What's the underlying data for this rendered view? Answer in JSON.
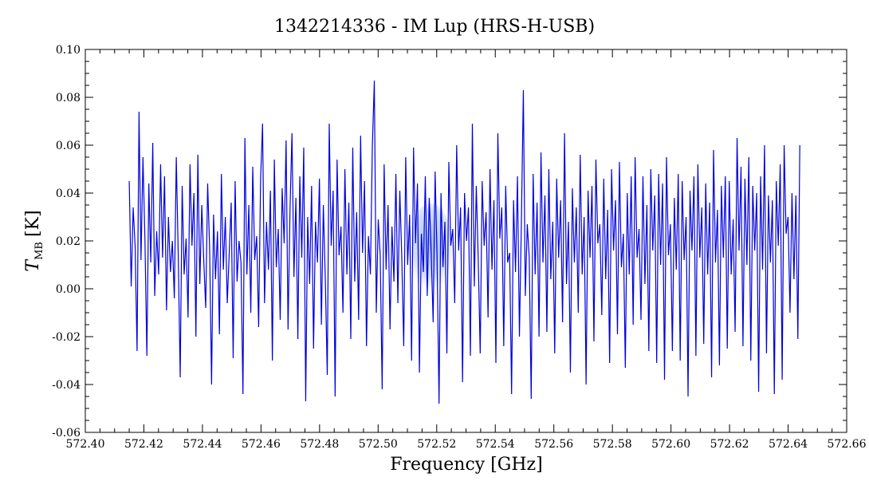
{
  "chart_data": {
    "type": "line",
    "title": "1342214336 - IM Lup (HRS-H-USB)",
    "xlabel": "Frequency [GHz]",
    "ylabel": "T",
    "ylabel_subscript": "MB",
    "ylabel_unit": "[K]",
    "xlim": [
      572.4,
      572.66
    ],
    "ylim": [
      -0.06,
      0.1
    ],
    "xticks": [
      "572.40",
      "572.42",
      "572.44",
      "572.46",
      "572.48",
      "572.50",
      "572.52",
      "572.54",
      "572.56",
      "572.58",
      "572.60",
      "572.62",
      "572.64",
      "572.66"
    ],
    "yticks": [
      "-0.06",
      "-0.04",
      "-0.02",
      "0.00",
      "0.02",
      "0.04",
      "0.06",
      "0.08",
      "0.10"
    ],
    "grid": false,
    "series": [
      {
        "color": "#0000dd",
        "x_start": 572.415,
        "x_end": 572.644,
        "values": [
          0.045,
          0.001,
          0.034,
          0.018,
          -0.026,
          0.074,
          0.012,
          0.055,
          0.021,
          -0.028,
          0.044,
          0.011,
          0.061,
          -0.003,
          0.024,
          0.006,
          0.052,
          0.013,
          0.047,
          -0.009,
          0.03,
          0.007,
          0.02,
          -0.004,
          0.055,
          0.014,
          -0.037,
          0.043,
          0.006,
          0.021,
          -0.012,
          0.052,
          0.018,
          0.04,
          -0.02,
          0.056,
          0.002,
          0.035,
          0.012,
          -0.008,
          0.044,
          0.017,
          -0.04,
          0.031,
          0.004,
          0.024,
          -0.019,
          0.048,
          0.008,
          0.03,
          -0.006,
          0.015,
          0.036,
          -0.029,
          0.045,
          0.003,
          0.02,
          0.011,
          -0.044,
          0.063,
          0.006,
          0.035,
          -0.01,
          0.051,
          0.012,
          0.022,
          -0.016,
          0.046,
          0.069,
          -0.006,
          0.028,
          0.008,
          0.041,
          -0.03,
          0.054,
          0.009,
          0.025,
          -0.013,
          0.042,
          0.019,
          0.062,
          -0.017,
          0.033,
          0.065,
          0.005,
          0.038,
          -0.021,
          0.047,
          0.013,
          0.059,
          -0.047,
          0.03,
          0.002,
          0.043,
          -0.025,
          0.028,
          0.011,
          0.046,
          -0.015,
          0.035,
          0.004,
          -0.036,
          0.069,
          0.018,
          0.041,
          -0.045,
          0.054,
          0.014,
          0.026,
          -0.01,
          0.05,
          0.006,
          0.036,
          -0.021,
          0.059,
          0.003,
          0.032,
          -0.013,
          0.064,
          0.015,
          0.045,
          -0.024,
          0.022,
          0.006,
          0.06,
          0.087,
          -0.01,
          0.029,
          0.014,
          -0.042,
          0.052,
          0.008,
          0.035,
          -0.017,
          0.026,
          0.003,
          0.048,
          -0.006,
          0.041,
          0.013,
          -0.024,
          0.055,
          0.01,
          0.031,
          -0.03,
          0.059,
          0.019,
          0.044,
          -0.035,
          0.023,
          0.007,
          0.047,
          -0.003,
          0.038,
          0.015,
          -0.014,
          0.049,
          0.013,
          -0.048,
          0.04,
          0.009,
          0.028,
          -0.027,
          0.053,
          0.018,
          0.025,
          -0.006,
          0.06,
          0.016,
          0.034,
          -0.039,
          0.04,
          0.02,
          0.034,
          -0.028,
          0.069,
          0.001,
          0.043,
          0.012,
          -0.027,
          0.045,
          0.018,
          0.032,
          -0.012,
          0.05,
          0.008,
          0.037,
          -0.031,
          0.065,
          0.021,
          0.034,
          -0.024,
          0.043,
          0.011,
          0.015,
          -0.044,
          0.037,
          0.007,
          0.047,
          -0.02,
          0.028,
          0.083,
          -0.003,
          0.027,
          0.013,
          -0.046,
          0.048,
          0.006,
          0.036,
          -0.02,
          0.057,
          0.011,
          0.039,
          -0.018,
          0.05,
          0.004,
          0.028,
          -0.027,
          0.046,
          0.013,
          0.037,
          -0.014,
          0.065,
          0.002,
          0.028,
          -0.035,
          0.042,
          0.011,
          0.034,
          -0.01,
          0.056,
          0.006,
          0.03,
          -0.04,
          0.041,
          0.013,
          0.043,
          -0.022,
          0.054,
          0.019,
          0.027,
          -0.011,
          0.046,
          0.004,
          0.033,
          -0.031,
          0.05,
          0.016,
          0.037,
          -0.019,
          0.053,
          0.009,
          0.023,
          -0.033,
          0.04,
          0.006,
          0.047,
          -0.015,
          0.055,
          0.013,
          0.025,
          -0.013,
          0.047,
          0.002,
          0.035,
          -0.026,
          0.05,
          0.016,
          0.039,
          -0.031,
          0.048,
          0.01,
          0.044,
          -0.038,
          0.055,
          0.014,
          0.027,
          -0.026,
          0.038,
          0.008,
          0.048,
          -0.03,
          0.045,
          0.012,
          0.03,
          -0.045,
          0.041,
          0.016,
          0.047,
          -0.028,
          0.052,
          0.013,
          0.034,
          -0.023,
          0.044,
          0.006,
          0.036,
          -0.037,
          0.058,
          0.011,
          0.033,
          -0.032,
          0.043,
          0.013,
          0.047,
          -0.025,
          0.045,
          0.006,
          0.029,
          -0.018,
          0.063,
          0.016,
          0.051,
          -0.024,
          0.046,
          0.01,
          0.055,
          -0.03,
          0.043,
          0.016,
          0.04,
          -0.043,
          0.047,
          0.008,
          0.06,
          -0.027,
          0.039,
          0.011,
          0.037,
          -0.044,
          0.045,
          0.018,
          0.052,
          -0.038,
          0.06,
          0.023,
          0.03,
          -0.01,
          0.04,
          0.004,
          0.039,
          -0.021,
          0.06
        ]
      }
    ]
  }
}
